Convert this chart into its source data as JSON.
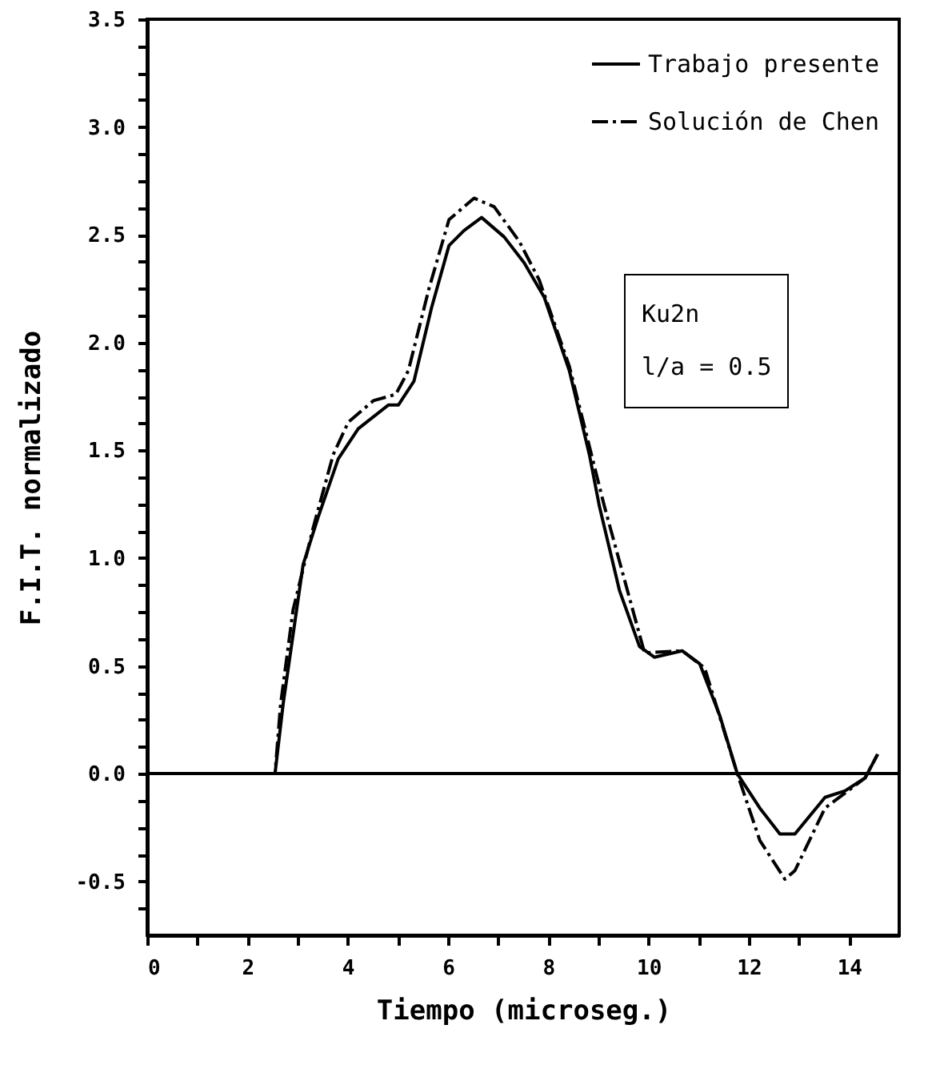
{
  "chart_data": {
    "type": "line",
    "xlabel": "Tiempo (microseg.)",
    "ylabel": "F.I.T. normalizado",
    "xlim": [
      0,
      15
    ],
    "ylim": [
      -0.75,
      3.5
    ],
    "xticks": [
      0,
      {
        "value": 1,
        "label": null
      },
      2,
      {
        "value": 3,
        "label": null
      },
      4,
      {
        "value": 5,
        "label": null
      },
      6,
      {
        "value": 7,
        "label": null
      },
      8,
      {
        "value": 9,
        "label": null
      },
      10,
      {
        "value": 11,
        "label": null
      },
      12,
      {
        "value": 13,
        "label": null
      },
      14
    ],
    "yticks": [
      {
        "value": -0.625,
        "label": null
      },
      {
        "value": -0.5,
        "label": "-0.5"
      },
      {
        "value": -0.375,
        "label": null
      },
      {
        "value": -0.25,
        "label": null
      },
      {
        "value": -0.125,
        "label": null
      },
      {
        "value": 0,
        "label": "0.0"
      },
      {
        "value": 0.125,
        "label": null
      },
      {
        "value": 0.25,
        "label": null
      },
      {
        "value": 0.375,
        "label": null
      },
      {
        "value": 0.5,
        "label": "0.5"
      },
      {
        "value": 0.625,
        "label": null
      },
      {
        "value": 0.75,
        "label": null
      },
      {
        "value": 0.875,
        "label": null
      },
      {
        "value": 1,
        "label": "1.0"
      },
      {
        "value": 1.125,
        "label": null
      },
      {
        "value": 1.25,
        "label": null
      },
      {
        "value": 1.375,
        "label": null
      },
      {
        "value": 1.5,
        "label": "1.5"
      },
      {
        "value": 1.625,
        "label": null
      },
      {
        "value": 1.75,
        "label": null
      },
      {
        "value": 1.875,
        "label": null
      },
      {
        "value": 2,
        "label": "2.0"
      },
      {
        "value": 2.125,
        "label": null
      },
      {
        "value": 2.25,
        "label": null
      },
      {
        "value": 2.375,
        "label": null
      },
      {
        "value": 2.5,
        "label": "2.5"
      },
      {
        "value": 2.625,
        "label": null
      },
      {
        "value": 2.75,
        "label": null
      },
      {
        "value": 2.875,
        "label": null
      },
      {
        "value": 3,
        "label": "3.0"
      },
      {
        "value": 3.125,
        "label": null
      },
      {
        "value": 3.25,
        "label": null
      },
      {
        "value": 3.375,
        "label": null
      },
      {
        "value": 3.5,
        "label": "3.5"
      }
    ],
    "legend": "top right",
    "grid": false,
    "series": [
      {
        "name": "Trabajo presente",
        "color": "#000000",
        "line_style": "solid",
        "x": [
          0,
          2.55,
          2.71,
          3.11,
          3.41,
          3.81,
          4.21,
          4.81,
          5.01,
          5.32,
          5.67,
          6.02,
          6.32,
          6.67,
          7.12,
          7.52,
          7.92,
          8.42,
          8.82,
          9.02,
          9.42,
          9.82,
          10.12,
          10.67,
          11.02,
          11.42,
          11.77,
          12.22,
          12.62,
          12.92,
          13.52,
          13.92,
          14.32,
          14.57
        ],
        "values": [
          0,
          0,
          0.32,
          0.97,
          1.19,
          1.46,
          1.6,
          1.71,
          1.71,
          1.82,
          2.16,
          2.45,
          2.52,
          2.58,
          2.49,
          2.37,
          2.21,
          1.87,
          1.48,
          1.24,
          0.85,
          0.59,
          0.54,
          0.57,
          0.51,
          0.27,
          0,
          -0.16,
          -0.28,
          -0.28,
          -0.11,
          -0.08,
          -0.02,
          0.09
        ]
      },
      {
        "name": "Solución de Chen",
        "color": "#000000",
        "line_style": "dashed",
        "x": [
          0,
          2.55,
          2.66,
          2.91,
          3.31,
          3.71,
          4.01,
          4.51,
          4.96,
          5.21,
          5.62,
          6.02,
          6.52,
          6.92,
          7.42,
          7.82,
          8.42,
          9.12,
          9.92,
          10.67,
          11.12,
          11.77,
          12.22,
          12.72,
          12.92,
          13.52,
          13.92,
          14.32,
          14.57
        ],
        "values": [
          0,
          0,
          0.32,
          0.76,
          1.14,
          1.48,
          1.63,
          1.73,
          1.76,
          1.87,
          2.25,
          2.57,
          2.67,
          2.63,
          2.47,
          2.29,
          1.89,
          1.24,
          0.56,
          0.57,
          0.49,
          0,
          -0.31,
          -0.49,
          -0.45,
          -0.16,
          -0.09,
          -0.02,
          0.09
        ]
      }
    ],
    "ref_lines": [
      {
        "axis": "y",
        "value": 0,
        "color": "#000000",
        "line_style": "solid"
      }
    ],
    "annotations": [
      "Ku2n",
      "l/a = 0.5"
    ]
  }
}
